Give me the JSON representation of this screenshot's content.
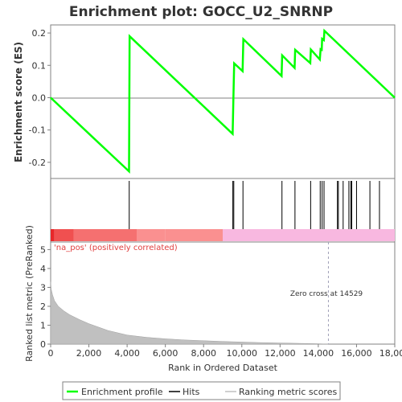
{
  "chart_data": {
    "type": "line",
    "title": "Enrichment plot: GOCC_U2_SNRNP",
    "colors": {
      "enrichment": "#00ff00",
      "hits": "#000000",
      "metric_fill": "#c0c0c0",
      "zero_line": "#808080",
      "zero_cross_line": "#a0a0b8",
      "bar_red_dark": "#e8282a",
      "bar_red": "#f05050",
      "bar_red_light": "#f57070",
      "bar_red_pale": "#fa9090",
      "bar_pink": "#f8b8e0"
    },
    "enrichment_profile": {
      "ylabel": "Enrichment score (ES)",
      "ylim": [
        -0.25,
        0.225
      ],
      "yticks": [
        0.2,
        0.1,
        0.0,
        -0.1,
        -0.2
      ],
      "ytick_labels": [
        "0.2",
        "0.1",
        "0.0",
        "-0.1",
        "-0.2"
      ],
      "x": [
        0,
        4100,
        4130,
        9520,
        9560,
        9600,
        10040,
        10080,
        12080,
        12110,
        12760,
        12790,
        13580,
        13610,
        14080,
        14120,
        14180,
        14200,
        14290,
        14320,
        18000
      ],
      "y": [
        0.0,
        -0.228,
        0.19,
        -0.112,
        0.0,
        0.106,
        0.082,
        0.181,
        0.067,
        0.131,
        0.092,
        0.148,
        0.107,
        0.149,
        0.118,
        0.15,
        0.148,
        0.182,
        0.178,
        0.207,
        0.0
      ]
    },
    "hits": {
      "positions": [
        4110,
        9530,
        9580,
        10060,
        12100,
        12780,
        13600,
        14100,
        14200,
        14300,
        15000,
        15050,
        15300,
        15600,
        15700,
        15750,
        16000,
        16700,
        17200
      ]
    },
    "ranking_metric": {
      "ylabel": "Ranked list metric (PreRanked)",
      "ylim": [
        0,
        5.4
      ],
      "yticks": [
        0,
        1,
        2,
        3,
        4,
        5
      ],
      "ytick_labels": [
        "0",
        "1",
        "2",
        "3",
        "4",
        "5"
      ],
      "x": [
        0,
        30,
        100,
        200,
        400,
        700,
        1000,
        1500,
        2000,
        3000,
        4000,
        5000,
        6000,
        7000,
        8000,
        9000,
        10000,
        11000,
        12000,
        13000,
        14000,
        14529
      ],
      "y": [
        3.3,
        2.9,
        2.6,
        2.3,
        2.0,
        1.75,
        1.55,
        1.3,
        1.08,
        0.72,
        0.48,
        0.36,
        0.28,
        0.22,
        0.18,
        0.14,
        0.11,
        0.08,
        0.06,
        0.04,
        0.02,
        0.0
      ],
      "positive_label": "'na_pos' (positively correlated)",
      "zero_cross": 14529,
      "zero_cross_label": "Zero cross at 14529"
    },
    "xlabel": "Rank in Ordered Dataset",
    "xlim": [
      0,
      18000
    ],
    "xticks": [
      0,
      2000,
      4000,
      6000,
      8000,
      10000,
      12000,
      14000,
      16000,
      18000
    ],
    "xtick_labels": [
      "0",
      "2,000",
      "4,000",
      "6,000",
      "8,000",
      "10,000",
      "12,000",
      "14,000",
      "16,000",
      "18,000"
    ],
    "color_bar": [
      {
        "from": 0,
        "to": 200,
        "color": "bar_red_dark"
      },
      {
        "from": 200,
        "to": 1200,
        "color": "bar_red"
      },
      {
        "from": 1200,
        "to": 4500,
        "color": "bar_red_light"
      },
      {
        "from": 4500,
        "to": 6000,
        "color": "bar_red_pale"
      },
      {
        "from": 6000,
        "to": 9000,
        "color": "bar_red_pale"
      },
      {
        "from": 9000,
        "to": 18000,
        "color": "bar_pink"
      }
    ],
    "legend": {
      "placement": "bottom",
      "items": [
        "Enrichment profile",
        "Hits",
        "Ranking metric scores"
      ]
    }
  }
}
